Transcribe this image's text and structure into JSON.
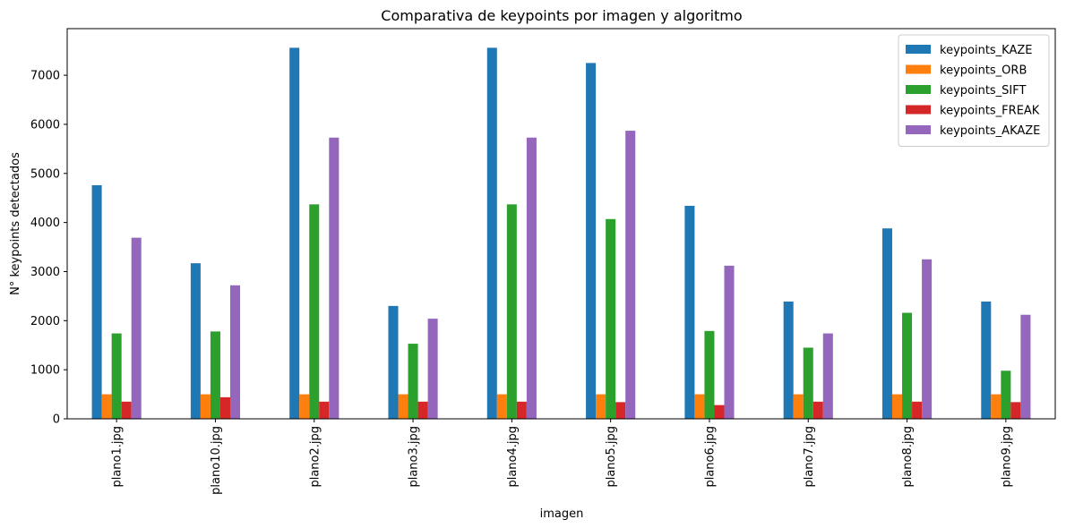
{
  "chart_data": {
    "type": "bar",
    "title": "Comparativa de keypoints por imagen y algoritmo",
    "xlabel": "imagen",
    "ylabel": "N° keypoints detectados",
    "categories": [
      "plano1.jpg",
      "plano10.jpg",
      "plano2.jpg",
      "plano3.jpg",
      "plano4.jpg",
      "plano5.jpg",
      "plano6.jpg",
      "plano7.jpg",
      "plano8.jpg",
      "plano9.jpg"
    ],
    "ylim": [
      0,
      7950
    ],
    "yticks": [
      0,
      1000,
      2000,
      3000,
      4000,
      5000,
      6000,
      7000
    ],
    "legend_position": "top-right",
    "grid": false,
    "series": [
      {
        "name": "keypoints_KAZE",
        "color": "#1f77b4",
        "values": [
          4760,
          3170,
          7560,
          2300,
          7560,
          7250,
          4340,
          2390,
          3880,
          2390
        ]
      },
      {
        "name": "keypoints_ORB",
        "color": "#ff7f0e",
        "values": [
          500,
          500,
          500,
          500,
          500,
          500,
          500,
          500,
          500,
          500
        ]
      },
      {
        "name": "keypoints_SIFT",
        "color": "#2ca02c",
        "values": [
          1740,
          1780,
          4370,
          1530,
          4370,
          4070,
          1790,
          1450,
          2160,
          980
        ]
      },
      {
        "name": "keypoints_FREAK",
        "color": "#d62728",
        "values": [
          350,
          440,
          350,
          350,
          350,
          340,
          280,
          350,
          350,
          340
        ]
      },
      {
        "name": "keypoints_AKAZE",
        "color": "#9467bd",
        "values": [
          3690,
          2720,
          5730,
          2040,
          5730,
          5870,
          3120,
          1740,
          3250,
          2120
        ]
      }
    ]
  }
}
